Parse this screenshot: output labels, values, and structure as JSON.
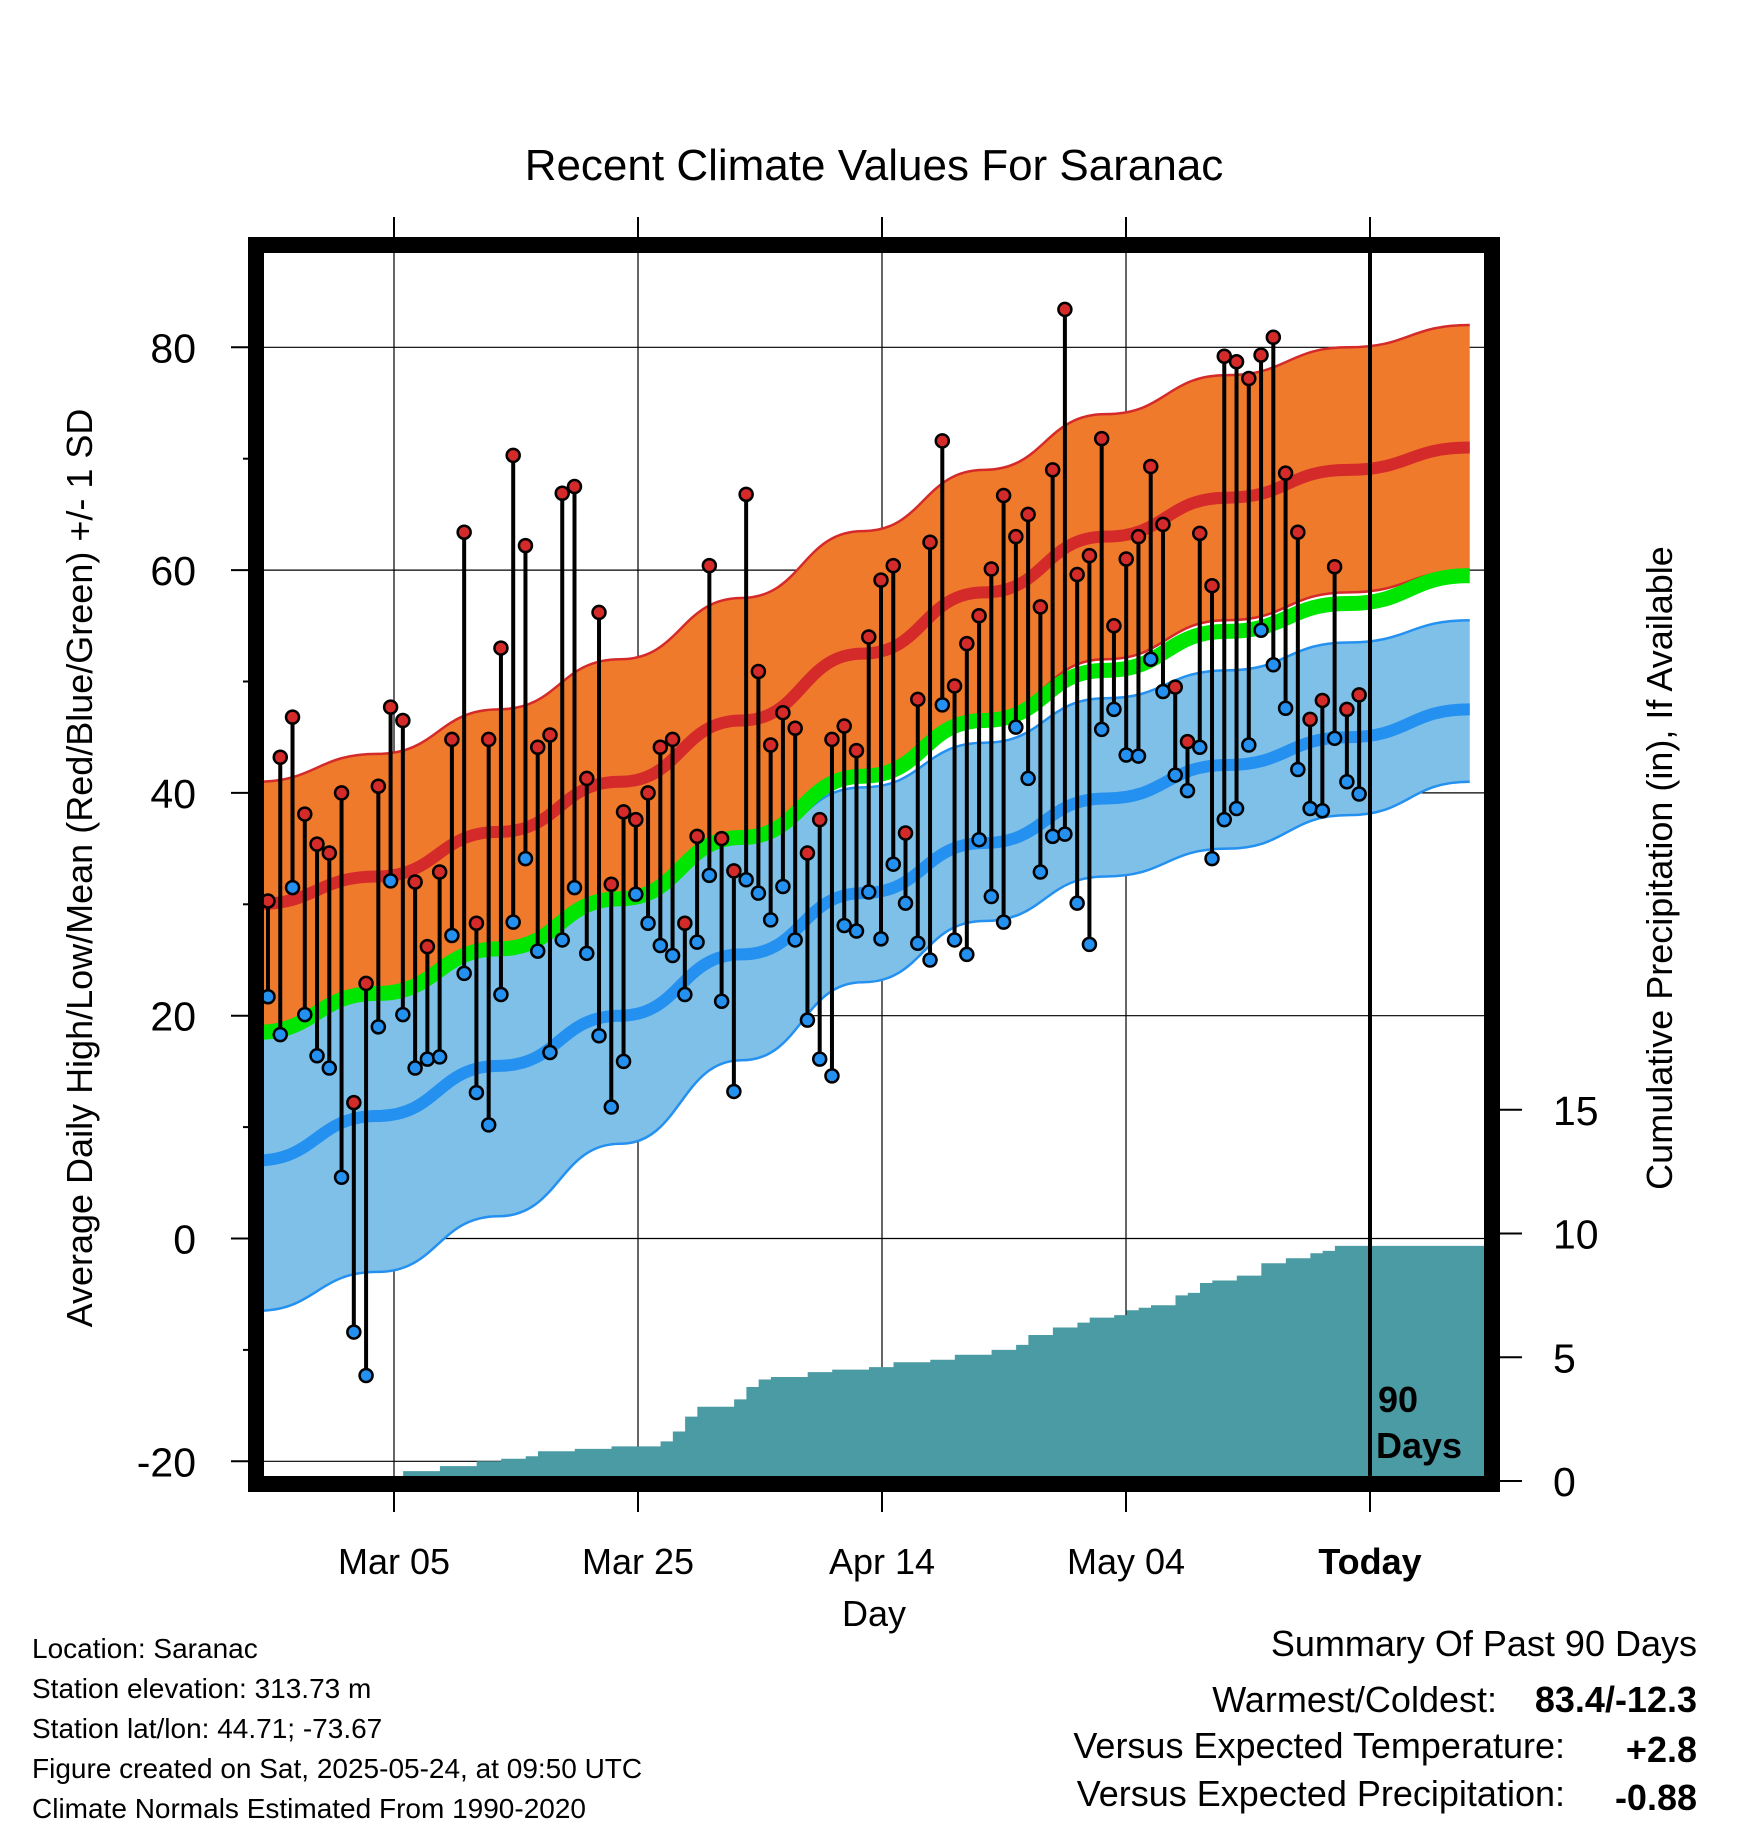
{
  "chart_data": {
    "type": "line",
    "title": "Recent Climate Values For Saranac",
    "xlabel": "Day",
    "ylabel": "Average Daily High/Low/Mean (Red/Blue/Green) +/- 1 SD",
    "y2label": "Cumulative Precipitation (in), If Available",
    "x_tick_labels": [
      "Mar 05",
      "Mar 25",
      "Apr 14",
      "May 04",
      "Today"
    ],
    "y_ticks": [
      "80",
      "60",
      "40",
      "20",
      "0",
      "-20"
    ],
    "y2_ticks": [
      "15",
      "10",
      "5",
      "0"
    ],
    "ylim": [
      -21.5,
      88
    ],
    "y2lim": [
      0,
      24
    ],
    "days_shown": 90,
    "today_marker_label_line1": "90",
    "today_marker_label_line2": "Days",
    "grid": true,
    "colors": {
      "normal_high": "#d42a2a",
      "high_band": "#f07a2c",
      "normal_low": "#2490f0",
      "low_band": "#7fc0e8",
      "normal_mean": "#00e600",
      "observed_high_dot": "#d42a2a",
      "observed_low_dot": "#2490f0",
      "precipitation": "#4a9ba3"
    },
    "normal_high": [
      30,
      32.5,
      36.5,
      41,
      46.5,
      52.5,
      58,
      63,
      66.5,
      69,
      71
    ],
    "normal_high_sd": 11,
    "normal_low": [
      7,
      11,
      15.5,
      20,
      25.5,
      31,
      35.5,
      39.5,
      42.5,
      45,
      47.5
    ],
    "normal_low_sd_upper": [
      22,
      25,
      28,
      31.5,
      35.5,
      40.5,
      44.5,
      48.5,
      51,
      53.5,
      55.5
    ],
    "normal_low_sd_lower": [
      -6.5,
      -3,
      2,
      8.5,
      16,
      23,
      28.5,
      32.5,
      35,
      38,
      41
    ],
    "normal_mean": [
      18.5,
      22,
      26,
      30.5,
      36,
      41.5,
      46.5,
      51,
      54.5,
      57,
      59.5
    ],
    "series": [
      {
        "name": "High",
        "values": [
          30.3,
          43.2,
          46.8,
          38.1,
          35.4,
          34.6,
          40.0,
          12.2,
          22.9,
          40.6,
          47.7,
          46.5,
          32.0,
          26.2,
          32.9,
          44.8,
          63.4,
          28.3,
          44.8,
          53.0,
          70.3,
          62.2,
          44.1,
          45.2,
          66.9,
          67.5,
          41.3,
          56.2,
          31.8,
          38.3,
          37.6,
          40.0,
          44.1,
          44.8,
          28.3,
          36.1,
          60.4,
          35.9,
          33.0,
          66.8,
          50.9,
          44.3,
          47.2,
          45.8,
          34.6,
          37.6,
          44.8,
          46.0,
          43.8,
          54.0,
          59.1,
          60.4,
          36.4,
          48.4,
          62.5,
          71.6,
          49.6,
          53.4,
          55.9,
          60.1,
          66.7,
          63.0,
          65.0,
          56.7,
          69.0,
          83.4,
          59.6,
          61.3,
          71.8,
          55.0,
          61.0,
          63.0,
          69.3,
          64.1,
          49.5,
          44.6,
          63.3,
          58.6,
          79.2,
          78.7,
          77.2,
          79.3,
          80.9,
          68.7,
          63.4,
          46.6,
          48.3,
          60.3,
          47.5,
          48.8
        ]
      },
      {
        "name": "Low",
        "values": [
          21.7,
          18.3,
          31.5,
          20.1,
          16.4,
          15.3,
          5.5,
          -8.4,
          -12.3,
          19.0,
          32.1,
          20.1,
          15.3,
          16.1,
          16.3,
          27.2,
          23.8,
          13.1,
          10.2,
          21.9,
          28.4,
          34.1,
          25.8,
          16.7,
          26.8,
          31.5,
          25.6,
          18.2,
          11.8,
          15.9,
          30.9,
          28.3,
          26.3,
          25.4,
          21.9,
          26.6,
          32.6,
          21.3,
          13.2,
          32.2,
          31.0,
          28.6,
          31.6,
          26.8,
          19.6,
          16.1,
          14.6,
          28.1,
          27.6,
          31.1,
          26.9,
          33.6,
          30.1,
          26.5,
          25.0,
          47.9,
          26.8,
          25.5,
          35.8,
          30.7,
          28.4,
          45.9,
          41.3,
          32.9,
          36.1,
          36.3,
          30.1,
          26.4,
          45.7,
          47.5,
          43.4,
          43.3,
          52.0,
          49.1,
          41.6,
          40.2,
          44.1,
          34.1,
          37.6,
          38.6,
          44.3,
          54.6,
          51.5,
          47.6,
          42.1,
          38.6,
          38.4,
          44.9,
          41.0,
          39.9
        ]
      }
    ],
    "precip_cumulative": [
      [
        0,
        0
      ],
      [
        10,
        0
      ],
      [
        12,
        0.4
      ],
      [
        15,
        0.6
      ],
      [
        18,
        0.8
      ],
      [
        20,
        0.9
      ],
      [
        22,
        1.0
      ],
      [
        23,
        1.2
      ],
      [
        26,
        1.3
      ],
      [
        29,
        1.4
      ],
      [
        33,
        1.6
      ],
      [
        34,
        2.0
      ],
      [
        35,
        2.6
      ],
      [
        36,
        3.0
      ],
      [
        39,
        3.3
      ],
      [
        40,
        3.8
      ],
      [
        41,
        4.1
      ],
      [
        42,
        4.2
      ],
      [
        45,
        4.4
      ],
      [
        47,
        4.5
      ],
      [
        50,
        4.6
      ],
      [
        52,
        4.8
      ],
      [
        55,
        4.9
      ],
      [
        57,
        5.1
      ],
      [
        60,
        5.3
      ],
      [
        62,
        5.5
      ],
      [
        63,
        5.9
      ],
      [
        65,
        6.2
      ],
      [
        67,
        6.4
      ],
      [
        68,
        6.6
      ],
      [
        70,
        6.7
      ],
      [
        71,
        6.9
      ],
      [
        72,
        7.0
      ],
      [
        73,
        7.1
      ],
      [
        74,
        7.1
      ],
      [
        75,
        7.5
      ],
      [
        76,
        7.6
      ],
      [
        77,
        8.0
      ],
      [
        78,
        8.1
      ],
      [
        79,
        8.1
      ],
      [
        80,
        8.3
      ],
      [
        81,
        8.3
      ],
      [
        82,
        8.8
      ],
      [
        83,
        8.8
      ],
      [
        84,
        9.0
      ],
      [
        85,
        9.0
      ],
      [
        86,
        9.2
      ],
      [
        87,
        9.3
      ],
      [
        88,
        9.5
      ],
      [
        89,
        9.5
      ],
      [
        90,
        9.5
      ],
      [
        99,
        9.5
      ]
    ],
    "summary": {
      "heading": "Summary Of Past 90 Days",
      "warm_cold_label": "Warmest/Coldest:",
      "warm_cold_value": "83.4/-12.3",
      "temp_label": "Versus Expected Temperature:",
      "temp_value": "+2.8",
      "temp_color": "#d42a2a",
      "precip_label": "Versus Expected Precipitation:",
      "precip_value": "-0.88",
      "precip_color": "#a9582a"
    },
    "footer": [
      "Location: Saranac",
      "Station elevation: 313.73 m",
      "Station lat/lon: 44.71; -73.67",
      "Figure created on Sat, 2025-05-24, at 09:50 UTC",
      "Climate Normals Estimated From 1990-2020"
    ]
  }
}
